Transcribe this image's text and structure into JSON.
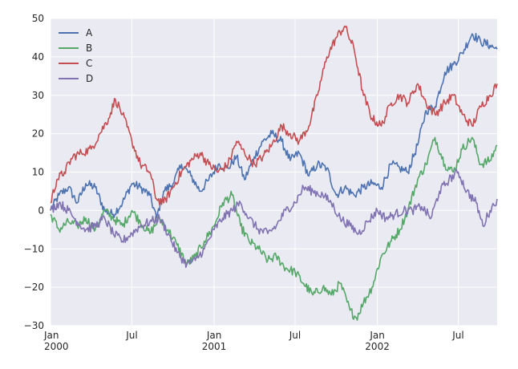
{
  "chart_data": {
    "type": "line",
    "title": "",
    "xlabel": "",
    "ylabel": "",
    "xlim": [
      "2000-01-01",
      "2002-09-26"
    ],
    "ylim": [
      -30,
      50
    ],
    "grid": true,
    "legend_position": "top-left",
    "x_ticks": [
      {
        "date": "2000-01-01",
        "label": "Jan",
        "sublabel": "2000"
      },
      {
        "date": "2000-07-01",
        "label": "Jul",
        "sublabel": ""
      },
      {
        "date": "2001-01-01",
        "label": "Jan",
        "sublabel": "2001"
      },
      {
        "date": "2001-07-01",
        "label": "Jul",
        "sublabel": ""
      },
      {
        "date": "2002-01-01",
        "label": "Jan",
        "sublabel": "2002"
      },
      {
        "date": "2002-07-01",
        "label": "Jul",
        "sublabel": ""
      }
    ],
    "y_ticks": [
      -30,
      -20,
      -10,
      0,
      10,
      20,
      30,
      40,
      50
    ],
    "series": [
      {
        "name": "A",
        "color": "#4c72b0",
        "points": [
          [
            "2000-01-01",
            0
          ],
          [
            "2000-01-20",
            4
          ],
          [
            "2000-02-10",
            6
          ],
          [
            "2000-03-01",
            2
          ],
          [
            "2000-03-20",
            7
          ],
          [
            "2000-04-10",
            6
          ],
          [
            "2000-05-01",
            0
          ],
          [
            "2000-05-20",
            -1
          ],
          [
            "2000-06-10",
            2
          ],
          [
            "2000-07-01",
            7
          ],
          [
            "2000-07-20",
            6
          ],
          [
            "2000-08-10",
            4
          ],
          [
            "2000-08-25",
            -2
          ],
          [
            "2000-09-10",
            5
          ],
          [
            "2000-10-01",
            7
          ],
          [
            "2000-10-20",
            12
          ],
          [
            "2000-11-10",
            9
          ],
          [
            "2000-12-01",
            5
          ],
          [
            "2000-12-20",
            8
          ],
          [
            "2001-01-10",
            12
          ],
          [
            "2001-02-01",
            11
          ],
          [
            "2001-02-20",
            14
          ],
          [
            "2001-03-10",
            8
          ],
          [
            "2001-04-01",
            14
          ],
          [
            "2001-04-20",
            18
          ],
          [
            "2001-05-10",
            20
          ],
          [
            "2001-06-01",
            18
          ],
          [
            "2001-06-20",
            13
          ],
          [
            "2001-07-10",
            15
          ],
          [
            "2001-08-01",
            9
          ],
          [
            "2001-08-20",
            12
          ],
          [
            "2001-09-10",
            11
          ],
          [
            "2001-10-01",
            4
          ],
          [
            "2001-10-20",
            6
          ],
          [
            "2001-11-10",
            4
          ],
          [
            "2001-12-01",
            6
          ],
          [
            "2001-12-20",
            7
          ],
          [
            "2002-01-10",
            6
          ],
          [
            "2002-02-01",
            12
          ],
          [
            "2002-02-20",
            11
          ],
          [
            "2002-03-10",
            10
          ],
          [
            "2002-04-01",
            17
          ],
          [
            "2002-04-20",
            26
          ],
          [
            "2002-05-10",
            27
          ],
          [
            "2002-06-01",
            36
          ],
          [
            "2002-06-20",
            38
          ],
          [
            "2002-07-10",
            41
          ],
          [
            "2002-08-01",
            46
          ],
          [
            "2002-08-20",
            44
          ],
          [
            "2002-09-10",
            43
          ],
          [
            "2002-09-26",
            42
          ]
        ]
      },
      {
        "name": "B",
        "color": "#55a868",
        "points": [
          [
            "2000-01-01",
            -1
          ],
          [
            "2000-01-20",
            -5
          ],
          [
            "2000-02-10",
            -3
          ],
          [
            "2000-03-01",
            -4
          ],
          [
            "2000-03-20",
            -2
          ],
          [
            "2000-04-10",
            -5
          ],
          [
            "2000-05-01",
            0
          ],
          [
            "2000-05-20",
            -2
          ],
          [
            "2000-06-10",
            -4
          ],
          [
            "2000-07-01",
            0
          ],
          [
            "2000-07-20",
            -3
          ],
          [
            "2000-08-10",
            -6
          ],
          [
            "2000-09-01",
            -2
          ],
          [
            "2000-09-20",
            -5
          ],
          [
            "2000-10-10",
            -9
          ],
          [
            "2000-11-01",
            -14
          ],
          [
            "2000-11-20",
            -12
          ],
          [
            "2000-12-10",
            -8
          ],
          [
            "2001-01-01",
            -4
          ],
          [
            "2001-01-20",
            2
          ],
          [
            "2001-02-10",
            4
          ],
          [
            "2001-03-01",
            -4
          ],
          [
            "2001-03-20",
            -8
          ],
          [
            "2001-04-10",
            -10
          ],
          [
            "2001-05-01",
            -13
          ],
          [
            "2001-05-20",
            -12
          ],
          [
            "2001-06-10",
            -15
          ],
          [
            "2001-07-01",
            -16
          ],
          [
            "2001-07-20",
            -19
          ],
          [
            "2001-08-10",
            -22
          ],
          [
            "2001-09-01",
            -20
          ],
          [
            "2001-09-20",
            -22
          ],
          [
            "2001-10-10",
            -19
          ],
          [
            "2001-11-01",
            -26
          ],
          [
            "2001-11-15",
            -28
          ],
          [
            "2001-12-01",
            -24
          ],
          [
            "2001-12-20",
            -20
          ],
          [
            "2002-01-10",
            -12
          ],
          [
            "2002-02-01",
            -8
          ],
          [
            "2002-02-20",
            -5
          ],
          [
            "2002-03-10",
            0
          ],
          [
            "2002-04-01",
            8
          ],
          [
            "2002-04-20",
            12
          ],
          [
            "2002-05-10",
            19
          ],
          [
            "2002-06-01",
            12
          ],
          [
            "2002-06-20",
            10
          ],
          [
            "2002-07-10",
            16
          ],
          [
            "2002-08-01",
            19
          ],
          [
            "2002-08-20",
            12
          ],
          [
            "2002-09-10",
            13
          ],
          [
            "2002-09-26",
            17
          ]
        ]
      },
      {
        "name": "C",
        "color": "#c44e52",
        "points": [
          [
            "2000-01-01",
            2
          ],
          [
            "2000-01-15",
            8
          ],
          [
            "2000-02-01",
            10
          ],
          [
            "2000-02-20",
            14
          ],
          [
            "2000-03-10",
            15
          ],
          [
            "2000-04-01",
            16
          ],
          [
            "2000-04-20",
            20
          ],
          [
            "2000-05-10",
            24
          ],
          [
            "2000-05-25",
            29
          ],
          [
            "2000-06-10",
            25
          ],
          [
            "2000-07-01",
            18
          ],
          [
            "2000-07-20",
            12
          ],
          [
            "2000-08-10",
            10
          ],
          [
            "2000-08-25",
            3
          ],
          [
            "2000-09-10",
            2
          ],
          [
            "2000-10-01",
            6
          ],
          [
            "2000-10-20",
            10
          ],
          [
            "2000-11-10",
            13
          ],
          [
            "2000-12-01",
            15
          ],
          [
            "2000-12-20",
            12
          ],
          [
            "2001-01-10",
            10
          ],
          [
            "2001-02-01",
            12
          ],
          [
            "2001-02-20",
            18
          ],
          [
            "2001-03-10",
            15
          ],
          [
            "2001-04-01",
            12
          ],
          [
            "2001-04-20",
            14
          ],
          [
            "2001-05-10",
            17
          ],
          [
            "2001-06-01",
            22
          ],
          [
            "2001-06-20",
            20
          ],
          [
            "2001-07-10",
            18
          ],
          [
            "2001-08-01",
            22
          ],
          [
            "2001-08-20",
            30
          ],
          [
            "2001-09-10",
            40
          ],
          [
            "2001-10-01",
            45
          ],
          [
            "2001-10-20",
            48
          ],
          [
            "2001-11-10",
            42
          ],
          [
            "2001-12-01",
            30
          ],
          [
            "2001-12-20",
            24
          ],
          [
            "2002-01-10",
            22
          ],
          [
            "2002-02-01",
            28
          ],
          [
            "2002-02-20",
            30
          ],
          [
            "2002-03-10",
            28
          ],
          [
            "2002-04-01",
            33
          ],
          [
            "2002-04-20",
            28
          ],
          [
            "2002-05-10",
            25
          ],
          [
            "2002-06-01",
            28
          ],
          [
            "2002-06-20",
            30
          ],
          [
            "2002-07-10",
            25
          ],
          [
            "2002-08-01",
            22
          ],
          [
            "2002-08-20",
            27
          ],
          [
            "2002-09-10",
            30
          ],
          [
            "2002-09-26",
            33
          ]
        ]
      },
      {
        "name": "D",
        "color": "#8172b2",
        "points": [
          [
            "2000-01-01",
            0
          ],
          [
            "2000-01-20",
            2
          ],
          [
            "2000-02-10",
            0
          ],
          [
            "2000-03-01",
            -3
          ],
          [
            "2000-03-20",
            -5
          ],
          [
            "2000-04-10",
            -4
          ],
          [
            "2000-05-01",
            -2
          ],
          [
            "2000-05-20",
            -6
          ],
          [
            "2000-06-10",
            -8
          ],
          [
            "2000-07-01",
            -6
          ],
          [
            "2000-07-20",
            -4
          ],
          [
            "2000-08-10",
            -3
          ],
          [
            "2000-09-01",
            -2
          ],
          [
            "2000-09-20",
            -6
          ],
          [
            "2000-10-10",
            -11
          ],
          [
            "2000-11-01",
            -14
          ],
          [
            "2000-11-20",
            -13
          ],
          [
            "2000-12-10",
            -10
          ],
          [
            "2001-01-01",
            -5
          ],
          [
            "2001-01-20",
            -2
          ],
          [
            "2001-02-10",
            0
          ],
          [
            "2001-03-01",
            2
          ],
          [
            "2001-03-20",
            -2
          ],
          [
            "2001-04-10",
            -5
          ],
          [
            "2001-05-01",
            -6
          ],
          [
            "2001-05-20",
            -4
          ],
          [
            "2001-06-10",
            0
          ],
          [
            "2001-07-01",
            2
          ],
          [
            "2001-07-20",
            6
          ],
          [
            "2001-08-10",
            5
          ],
          [
            "2001-09-01",
            4
          ],
          [
            "2001-09-20",
            2
          ],
          [
            "2001-10-10",
            -2
          ],
          [
            "2001-11-01",
            -4
          ],
          [
            "2001-11-20",
            -6
          ],
          [
            "2001-12-10",
            -3
          ],
          [
            "2002-01-01",
            0
          ],
          [
            "2002-01-20",
            -2
          ],
          [
            "2002-02-10",
            -1
          ],
          [
            "2002-03-01",
            0
          ],
          [
            "2002-03-20",
            0
          ],
          [
            "2002-04-10",
            1
          ],
          [
            "2002-05-01",
            -2
          ],
          [
            "2002-05-20",
            5
          ],
          [
            "2002-06-10",
            8
          ],
          [
            "2002-07-01",
            10
          ],
          [
            "2002-07-20",
            5
          ],
          [
            "2002-08-10",
            2
          ],
          [
            "2002-08-25",
            -4
          ],
          [
            "2002-09-10",
            0
          ],
          [
            "2002-09-26",
            3
          ]
        ]
      }
    ]
  }
}
